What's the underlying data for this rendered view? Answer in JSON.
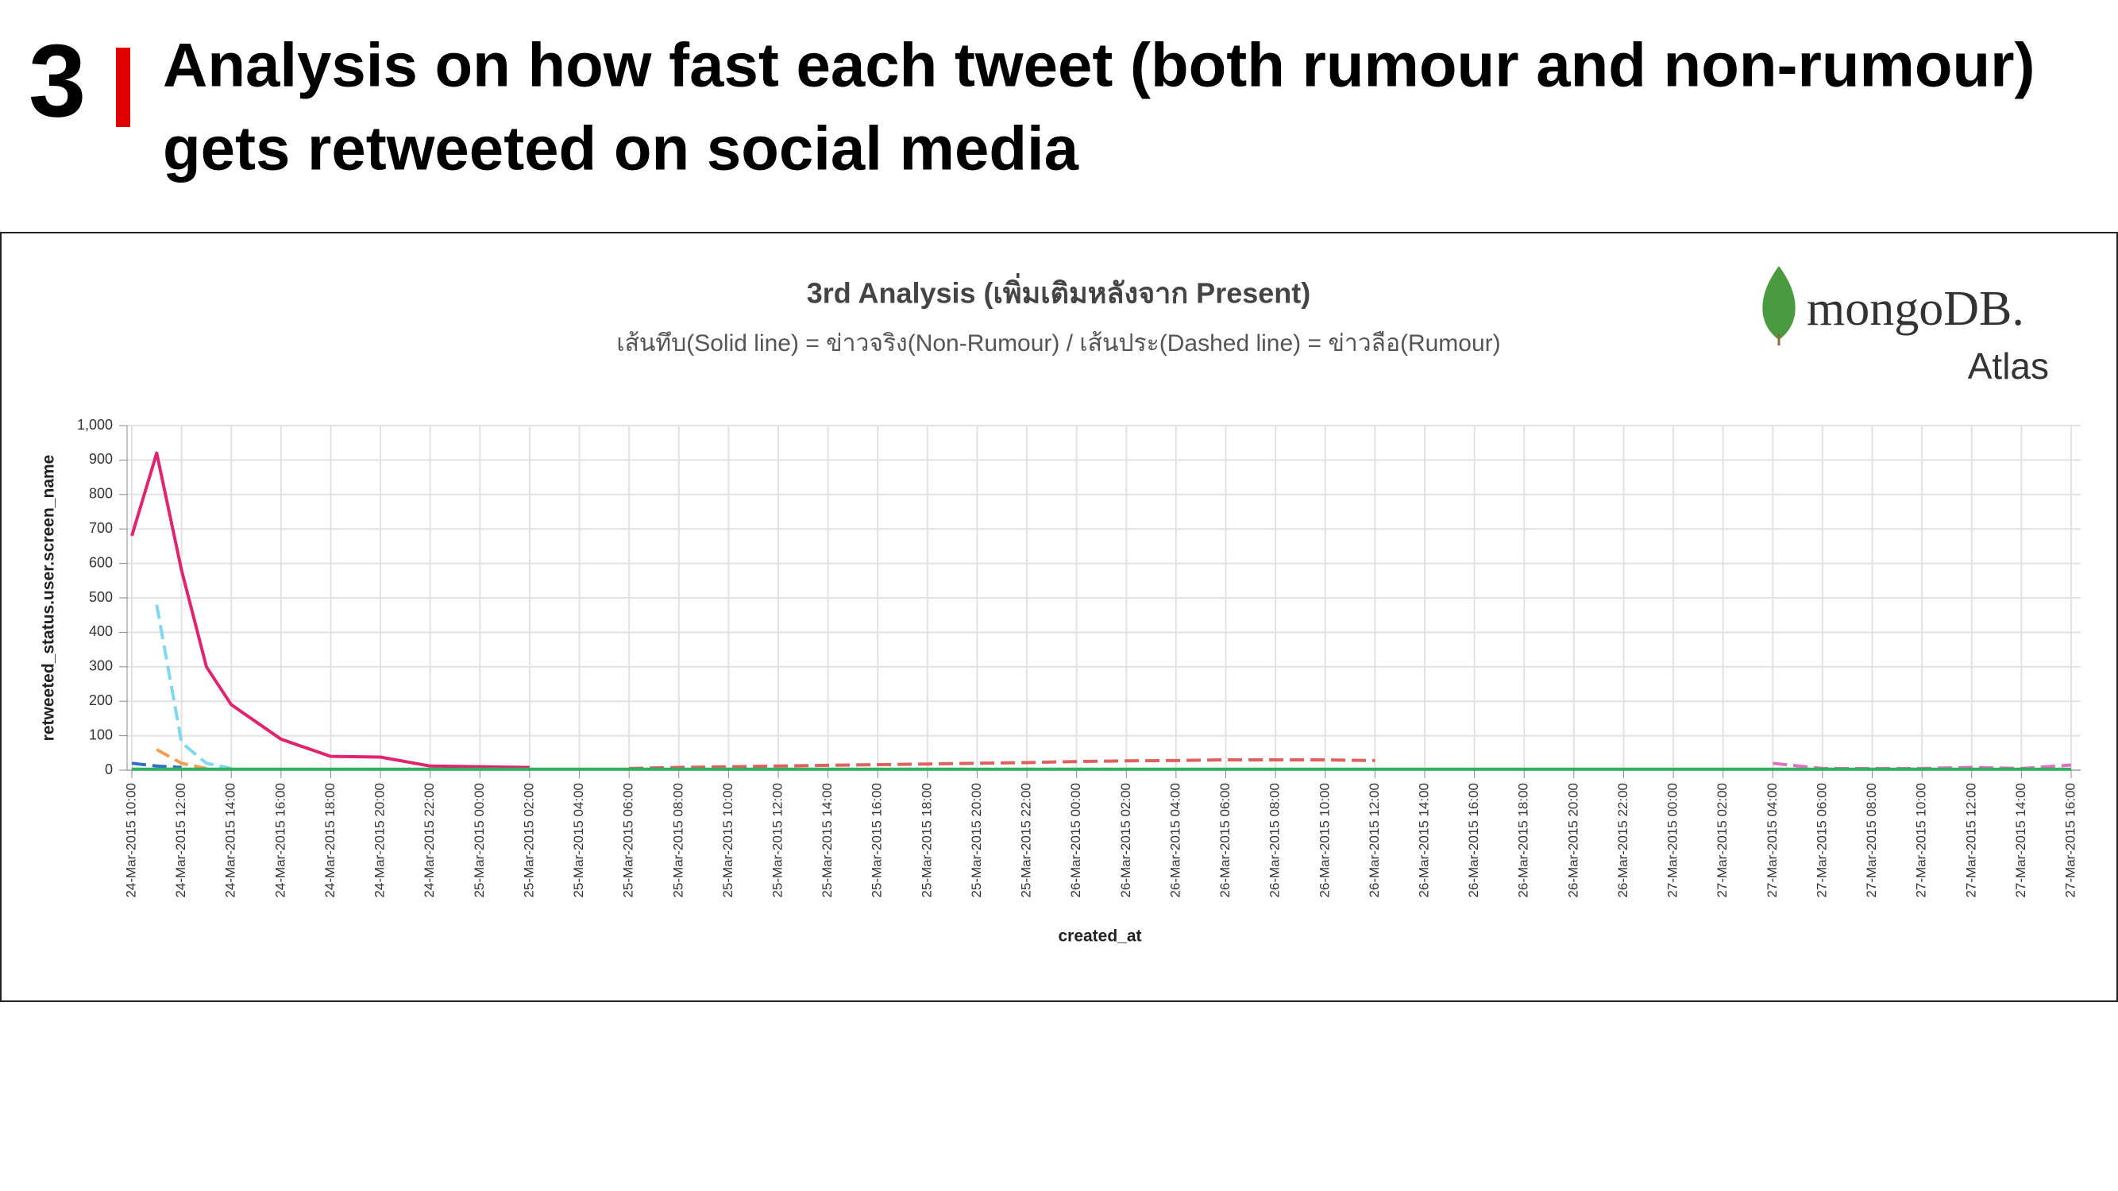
{
  "header": {
    "number": "3",
    "title_line1": "Analysis on how fast each tweet (both rumour and non-rumour)",
    "title_line2": "gets retweeted on social media"
  },
  "logo": {
    "brand": "mongoDB.",
    "product": "Atlas"
  },
  "chart_data": {
    "type": "line",
    "title": "3rd Analysis (เพิ่มเติมหลังจาก Present)",
    "subtitle": "เส้นทึบ(Solid line) = ข่าวจริง(Non-Rumour) / เส้นประ(Dashed line) = ข่าวลือ(Rumour)",
    "x_label": "created_at",
    "y_label": "retweeted_status.user.screen_name",
    "x": [
      "24-Mar-2015 10:00",
      "24-Mar-2015 11:00",
      "24-Mar-2015 12:00",
      "24-Mar-2015 13:00",
      "24-Mar-2015 14:00",
      "24-Mar-2015 16:00",
      "24-Mar-2015 18:00",
      "24-Mar-2015 20:00",
      "24-Mar-2015 22:00",
      "25-Mar-2015 00:00",
      "25-Mar-2015 02:00",
      "25-Mar-2015 04:00",
      "25-Mar-2015 06:00",
      "25-Mar-2015 08:00",
      "25-Mar-2015 10:00",
      "25-Mar-2015 12:00",
      "25-Mar-2015 14:00",
      "25-Mar-2015 16:00",
      "25-Mar-2015 18:00",
      "25-Mar-2015 20:00",
      "25-Mar-2015 22:00",
      "26-Mar-2015 00:00",
      "26-Mar-2015 02:00",
      "26-Mar-2015 04:00",
      "26-Mar-2015 06:00",
      "26-Mar-2015 08:00",
      "26-Mar-2015 10:00",
      "26-Mar-2015 12:00",
      "26-Mar-2015 14:00",
      "26-Mar-2015 16:00",
      "26-Mar-2015 18:00",
      "26-Mar-2015 20:00",
      "26-Mar-2015 22:00",
      "27-Mar-2015 00:00",
      "27-Mar-2015 02:00",
      "27-Mar-2015 04:00",
      "27-Mar-2015 06:00",
      "27-Mar-2015 08:00",
      "27-Mar-2015 10:00",
      "27-Mar-2015 12:00",
      "27-Mar-2015 14:00",
      "27-Mar-2015 16:00"
    ],
    "xticks": [
      "24-Mar-2015 10:00",
      "24-Mar-2015 12:00",
      "24-Mar-2015 14:00",
      "24-Mar-2015 16:00",
      "24-Mar-2015 18:00",
      "24-Mar-2015 20:00",
      "24-Mar-2015 22:00",
      "25-Mar-2015 00:00",
      "25-Mar-2015 02:00",
      "25-Mar-2015 04:00",
      "25-Mar-2015 06:00",
      "25-Mar-2015 08:00",
      "25-Mar-2015 10:00",
      "25-Mar-2015 12:00",
      "25-Mar-2015 14:00",
      "25-Mar-2015 16:00",
      "25-Mar-2015 18:00",
      "25-Mar-2015 20:00",
      "25-Mar-2015 22:00",
      "26-Mar-2015 00:00",
      "26-Mar-2015 02:00",
      "26-Mar-2015 04:00",
      "26-Mar-2015 06:00",
      "26-Mar-2015 08:00",
      "26-Mar-2015 10:00",
      "26-Mar-2015 12:00",
      "26-Mar-2015 14:00",
      "26-Mar-2015 16:00",
      "26-Mar-2015 18:00",
      "26-Mar-2015 20:00",
      "26-Mar-2015 22:00",
      "27-Mar-2015 00:00",
      "27-Mar-2015 02:00",
      "27-Mar-2015 04:00",
      "27-Mar-2015 06:00",
      "27-Mar-2015 08:00",
      "27-Mar-2015 10:00",
      "27-Mar-2015 12:00",
      "27-Mar-2015 14:00",
      "27-Mar-2015 16:00"
    ],
    "ylim": [
      0,
      1000
    ],
    "yticks": [
      0,
      100,
      200,
      300,
      400,
      500,
      600,
      700,
      800,
      900,
      {
        "value": 1000,
        "label": "1,000"
      }
    ],
    "grid": true,
    "series": [
      {
        "color": "#e0246f",
        "dash": false,
        "values": [
          680,
          920,
          580,
          300,
          190,
          90,
          40,
          38,
          12,
          10,
          8,
          null,
          null,
          null,
          null,
          null,
          null,
          null,
          null,
          null,
          null,
          null,
          null,
          null,
          null,
          null,
          null,
          null,
          null,
          null,
          null,
          null,
          null,
          null,
          null,
          null,
          null,
          null,
          null,
          null,
          null,
          null
        ]
      },
      {
        "color": "#7fd8ef",
        "dash": true,
        "values": [
          null,
          480,
          80,
          20,
          5,
          null,
          null,
          null,
          null,
          null,
          null,
          null,
          null,
          null,
          null,
          null,
          null,
          null,
          null,
          null,
          null,
          null,
          null,
          null,
          null,
          null,
          null,
          null,
          null,
          null,
          null,
          null,
          null,
          null,
          null,
          null,
          null,
          null,
          null,
          null,
          null,
          null
        ]
      },
      {
        "color": "#f0a050",
        "dash": true,
        "values": [
          null,
          60,
          20,
          5,
          null,
          null,
          null,
          null,
          null,
          null,
          null,
          null,
          null,
          null,
          null,
          null,
          null,
          null,
          null,
          null,
          null,
          null,
          null,
          null,
          null,
          null,
          null,
          null,
          null,
          null,
          null,
          null,
          null,
          null,
          null,
          null,
          null,
          null,
          null,
          null,
          null,
          null
        ]
      },
      {
        "color": "#3070c0",
        "dash": true,
        "values": [
          20,
          12,
          8,
          null,
          null,
          null,
          null,
          null,
          null,
          null,
          null,
          null,
          null,
          null,
          null,
          null,
          null,
          null,
          null,
          null,
          null,
          null,
          null,
          null,
          null,
          null,
          null,
          null,
          null,
          null,
          null,
          null,
          null,
          null,
          null,
          null,
          null,
          null,
          null,
          null,
          null,
          null
        ]
      },
      {
        "color": "#e06060",
        "dash": true,
        "values": [
          null,
          null,
          null,
          null,
          null,
          null,
          null,
          null,
          null,
          null,
          null,
          null,
          5,
          8,
          10,
          12,
          14,
          16,
          18,
          20,
          22,
          25,
          27,
          28,
          30,
          30,
          30,
          28,
          null,
          null,
          null,
          null,
          null,
          null,
          null,
          null,
          null,
          null,
          null,
          null,
          null,
          null
        ]
      },
      {
        "color": "#e070c0",
        "dash": true,
        "values": [
          null,
          null,
          null,
          null,
          null,
          null,
          null,
          null,
          null,
          null,
          null,
          null,
          null,
          null,
          null,
          null,
          null,
          null,
          null,
          null,
          null,
          null,
          null,
          null,
          null,
          null,
          null,
          null,
          null,
          null,
          null,
          null,
          null,
          null,
          null,
          20,
          5,
          5,
          5,
          8,
          5,
          15
        ]
      },
      {
        "color": "#30b060",
        "dash": false,
        "values": [
          3,
          3,
          3,
          3,
          3,
          3,
          3,
          3,
          3,
          3,
          3,
          3,
          3,
          3,
          3,
          3,
          3,
          3,
          3,
          3,
          3,
          3,
          3,
          3,
          3,
          3,
          3,
          3,
          3,
          3,
          3,
          3,
          3,
          3,
          3,
          3,
          3,
          3,
          3,
          3,
          3,
          3
        ]
      }
    ]
  }
}
